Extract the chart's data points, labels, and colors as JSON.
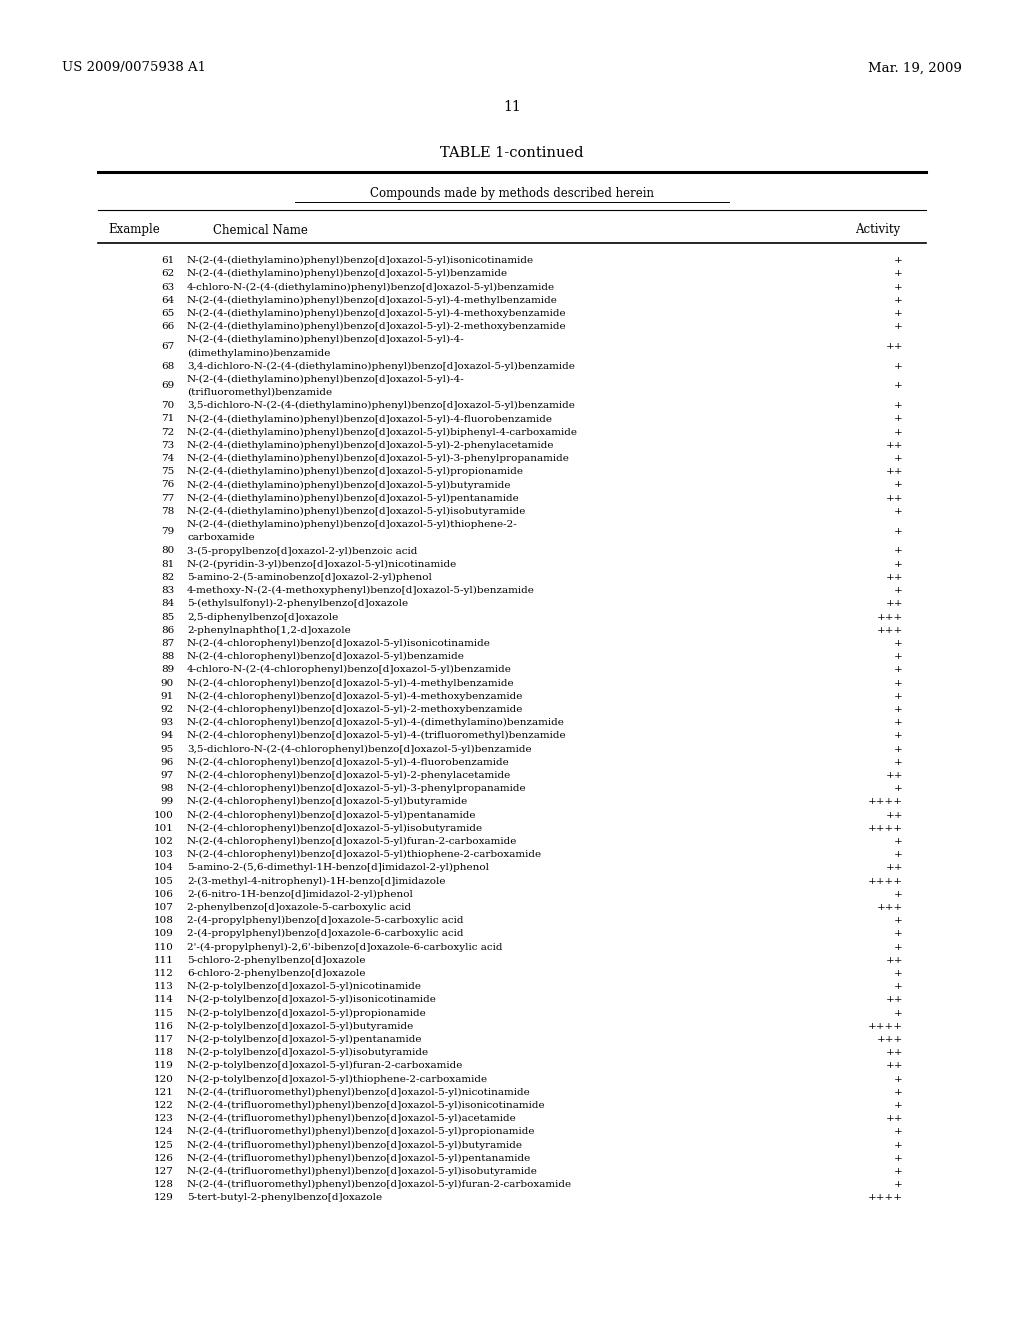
{
  "header_left": "US 2009/0075938 A1",
  "header_right": "Mar. 19, 2009",
  "page_number": "11",
  "table_title": "TABLE 1-continued",
  "table_subtitle": "Compounds made by methods described herein",
  "col1_header": "Example",
  "col2_header": "Chemical Name",
  "col3_header": "Activity",
  "bg_color": "#ffffff",
  "text_color": "#000000",
  "rows": [
    [
      "61",
      "N-(2-(4-(diethylamino)phenyl)benzo[d]oxazol-5-yl)isonicotinamide",
      "+"
    ],
    [
      "62",
      "N-(2-(4-(diethylamino)phenyl)benzo[d]oxazol-5-yl)benzamide",
      "+"
    ],
    [
      "63",
      "4-chloro-N-(2-(4-(diethylamino)phenyl)benzo[d]oxazol-5-yl)benzamide",
      "+"
    ],
    [
      "64",
      "N-(2-(4-(diethylamino)phenyl)benzo[d]oxazol-5-yl)-4-methylbenzamide",
      "+"
    ],
    [
      "65",
      "N-(2-(4-(diethylamino)phenyl)benzo[d]oxazol-5-yl)-4-methoxybenzamide",
      "+"
    ],
    [
      "66",
      "N-(2-(4-(diethylamino)phenyl)benzo[d]oxazol-5-yl)-2-methoxybenzamide",
      "+"
    ],
    [
      "67",
      "N-(2-(4-(diethylamino)phenyl)benzo[d]oxazol-5-yl)-4-\n(dimethylamino)benzamide",
      "++"
    ],
    [
      "68",
      "3,4-dichloro-N-(2-(4-(diethylamino)phenyl)benzo[d]oxazol-5-yl)benzamide",
      "+"
    ],
    [
      "69",
      "N-(2-(4-(diethylamino)phenyl)benzo[d]oxazol-5-yl)-4-\n(trifluoromethyl)benzamide",
      "+"
    ],
    [
      "70",
      "3,5-dichloro-N-(2-(4-(diethylamino)phenyl)benzo[d]oxazol-5-yl)benzamide",
      "+"
    ],
    [
      "71",
      "N-(2-(4-(diethylamino)phenyl)benzo[d]oxazol-5-yl)-4-fluorobenzamide",
      "+"
    ],
    [
      "72",
      "N-(2-(4-(diethylamino)phenyl)benzo[d]oxazol-5-yl)biphenyl-4-carboxamide",
      "+"
    ],
    [
      "73",
      "N-(2-(4-(diethylamino)phenyl)benzo[d]oxazol-5-yl)-2-phenylacetamide",
      "++"
    ],
    [
      "74",
      "N-(2-(4-(diethylamino)phenyl)benzo[d]oxazol-5-yl)-3-phenylpropanamide",
      "+"
    ],
    [
      "75",
      "N-(2-(4-(diethylamino)phenyl)benzo[d]oxazol-5-yl)propionamide",
      "++"
    ],
    [
      "76",
      "N-(2-(4-(diethylamino)phenyl)benzo[d]oxazol-5-yl)butyramide",
      "+"
    ],
    [
      "77",
      "N-(2-(4-(diethylamino)phenyl)benzo[d]oxazol-5-yl)pentanamide",
      "++"
    ],
    [
      "78",
      "N-(2-(4-(diethylamino)phenyl)benzo[d]oxazol-5-yl)isobutyramide",
      "+"
    ],
    [
      "79",
      "N-(2-(4-(diethylamino)phenyl)benzo[d]oxazol-5-yl)thiophene-2-\ncarboxamide",
      "+"
    ],
    [
      "80",
      "3-(5-propylbenzo[d]oxazol-2-yl)benzoic acid",
      "+"
    ],
    [
      "81",
      "N-(2-(pyridin-3-yl)benzo[d]oxazol-5-yl)nicotinamide",
      "+"
    ],
    [
      "82",
      "5-amino-2-(5-aminobenzo[d]oxazol-2-yl)phenol",
      "++"
    ],
    [
      "83",
      "4-methoxy-N-(2-(4-methoxyphenyl)benzo[d]oxazol-5-yl)benzamide",
      "+"
    ],
    [
      "84",
      "5-(ethylsulfonyl)-2-phenylbenzo[d]oxazole",
      "++"
    ],
    [
      "85",
      "2,5-diphenylbenzo[d]oxazole",
      "+++"
    ],
    [
      "86",
      "2-phenylnaphtho[1,2-d]oxazole",
      "+++"
    ],
    [
      "87",
      "N-(2-(4-chlorophenyl)benzo[d]oxazol-5-yl)isonicotinamide",
      "+"
    ],
    [
      "88",
      "N-(2-(4-chlorophenyl)benzo[d]oxazol-5-yl)benzamide",
      "+"
    ],
    [
      "89",
      "4-chloro-N-(2-(4-chlorophenyl)benzo[d]oxazol-5-yl)benzamide",
      "+"
    ],
    [
      "90",
      "N-(2-(4-chlorophenyl)benzo[d]oxazol-5-yl)-4-methylbenzamide",
      "+"
    ],
    [
      "91",
      "N-(2-(4-chlorophenyl)benzo[d]oxazol-5-yl)-4-methoxybenzamide",
      "+"
    ],
    [
      "92",
      "N-(2-(4-chlorophenyl)benzo[d]oxazol-5-yl)-2-methoxybenzamide",
      "+"
    ],
    [
      "93",
      "N-(2-(4-chlorophenyl)benzo[d]oxazol-5-yl)-4-(dimethylamino)benzamide",
      "+"
    ],
    [
      "94",
      "N-(2-(4-chlorophenyl)benzo[d]oxazol-5-yl)-4-(trifluoromethyl)benzamide",
      "+"
    ],
    [
      "95",
      "3,5-dichloro-N-(2-(4-chlorophenyl)benzo[d]oxazol-5-yl)benzamide",
      "+"
    ],
    [
      "96",
      "N-(2-(4-chlorophenyl)benzo[d]oxazol-5-yl)-4-fluorobenzamide",
      "+"
    ],
    [
      "97",
      "N-(2-(4-chlorophenyl)benzo[d]oxazol-5-yl)-2-phenylacetamide",
      "++"
    ],
    [
      "98",
      "N-(2-(4-chlorophenyl)benzo[d]oxazol-5-yl)-3-phenylpropanamide",
      "+"
    ],
    [
      "99",
      "N-(2-(4-chlorophenyl)benzo[d]oxazol-5-yl)butyramide",
      "++++"
    ],
    [
      "100",
      "N-(2-(4-chlorophenyl)benzo[d]oxazol-5-yl)pentanamide",
      "++"
    ],
    [
      "101",
      "N-(2-(4-chlorophenyl)benzo[d]oxazol-5-yl)isobutyramide",
      "++++"
    ],
    [
      "102",
      "N-(2-(4-chlorophenyl)benzo[d]oxazol-5-yl)furan-2-carboxamide",
      "+"
    ],
    [
      "103",
      "N-(2-(4-chlorophenyl)benzo[d]oxazol-5-yl)thiophene-2-carboxamide",
      "+"
    ],
    [
      "104",
      "5-amino-2-(5,6-dimethyl-1H-benzo[d]imidazol-2-yl)phenol",
      "++"
    ],
    [
      "105",
      "2-(3-methyl-4-nitrophenyl)-1H-benzo[d]imidazole",
      "++++"
    ],
    [
      "106",
      "2-(6-nitro-1H-benzo[d]imidazol-2-yl)phenol",
      "+"
    ],
    [
      "107",
      "2-phenylbenzo[d]oxazole-5-carboxylic acid",
      "+++"
    ],
    [
      "108",
      "2-(4-propylphenyl)benzo[d]oxazole-5-carboxylic acid",
      "+"
    ],
    [
      "109",
      "2-(4-propylphenyl)benzo[d]oxazole-6-carboxylic acid",
      "+"
    ],
    [
      "110",
      "2'-(4-propylphenyl)-2,6'-bibenzo[d]oxazole-6-carboxylic acid",
      "+"
    ],
    [
      "111",
      "5-chloro-2-phenylbenzo[d]oxazole",
      "++"
    ],
    [
      "112",
      "6-chloro-2-phenylbenzo[d]oxazole",
      "+"
    ],
    [
      "113",
      "N-(2-p-tolylbenzo[d]oxazol-5-yl)nicotinamide",
      "+"
    ],
    [
      "114",
      "N-(2-p-tolylbenzo[d]oxazol-5-yl)isonicotinamide",
      "++"
    ],
    [
      "115",
      "N-(2-p-tolylbenzo[d]oxazol-5-yl)propionamide",
      "+"
    ],
    [
      "116",
      "N-(2-p-tolylbenzo[d]oxazol-5-yl)butyramide",
      "++++"
    ],
    [
      "117",
      "N-(2-p-tolylbenzo[d]oxazol-5-yl)pentanamide",
      "+++"
    ],
    [
      "118",
      "N-(2-p-tolylbenzo[d]oxazol-5-yl)isobutyramide",
      "++"
    ],
    [
      "119",
      "N-(2-p-tolylbenzo[d]oxazol-5-yl)furan-2-carboxamide",
      "++"
    ],
    [
      "120",
      "N-(2-p-tolylbenzo[d]oxazol-5-yl)thiophene-2-carboxamide",
      "+"
    ],
    [
      "121",
      "N-(2-(4-(trifluoromethyl)phenyl)benzo[d]oxazol-5-yl)nicotinamide",
      "+"
    ],
    [
      "122",
      "N-(2-(4-(trifluoromethyl)phenyl)benzo[d]oxazol-5-yl)isonicotinamide",
      "+"
    ],
    [
      "123",
      "N-(2-(4-(trifluoromethyl)phenyl)benzo[d]oxazol-5-yl)acetamide",
      "++"
    ],
    [
      "124",
      "N-(2-(4-(trifluoromethyl)phenyl)benzo[d]oxazol-5-yl)propionamide",
      "+"
    ],
    [
      "125",
      "N-(2-(4-(trifluoromethyl)phenyl)benzo[d]oxazol-5-yl)butyramide",
      "+"
    ],
    [
      "126",
      "N-(2-(4-(trifluoromethyl)phenyl)benzo[d]oxazol-5-yl)pentanamide",
      "+"
    ],
    [
      "127",
      "N-(2-(4-(trifluoromethyl)phenyl)benzo[d]oxazol-5-yl)isobutyramide",
      "+"
    ],
    [
      "128",
      "N-(2-(4-(trifluoromethyl)phenyl)benzo[d]oxazol-5-yl)furan-2-carboxamide",
      "+"
    ],
    [
      "129",
      "5-tert-butyl-2-phenylbenzo[d]oxazole",
      "++++"
    ]
  ]
}
